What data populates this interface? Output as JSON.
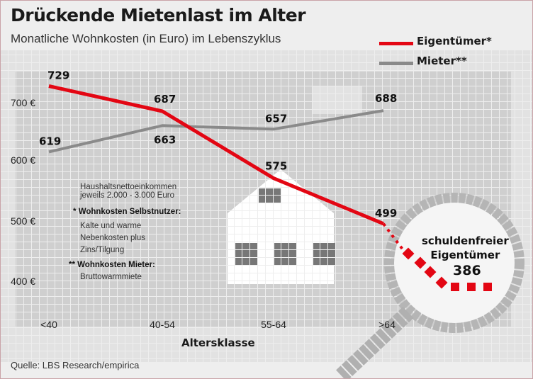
{
  "chart_data": {
    "type": "line",
    "title": "Drückende Mietenlast im Alter",
    "subtitle": "Monatliche Wohnkosten (in Euro) im Lebenszyklus",
    "xlabel": "Altersklasse",
    "ylabel": "",
    "categories": [
      "<40",
      "40-54",
      "55-64",
      ">64"
    ],
    "yticks": [
      "700 €",
      "600 €",
      "500 €",
      "400 €"
    ],
    "ylim": [
      350,
      760
    ],
    "series": [
      {
        "name": "Eigentümer*",
        "color": "#e30613",
        "values": [
          729,
          687,
          575,
          499
        ],
        "labels": [
          "729",
          "687",
          "575",
          "499"
        ]
      },
      {
        "name": "Mieter**",
        "color": "#8a8a8a",
        "values": [
          619,
          663,
          657,
          688
        ],
        "labels": [
          "619",
          "663",
          "657",
          "688"
        ]
      }
    ],
    "annotation": {
      "text_line1": "schuldenfreier",
      "text_line2": "Eigentümer",
      "value": 386,
      "label": "386"
    },
    "legend_position": "top-right",
    "grid": false
  },
  "notes": {
    "line1": "Haushaltsnettoeinkommen",
    "line2": "jeweils 2.000 - 3.000 Euro",
    "owner_marker": "*",
    "owner_heading": "Wohnkosten Selbstnutzer:",
    "owner_l1": "Kalte und warme",
    "owner_l2": "Nebenkosten plus",
    "owner_l3": "Zins/Tilgung",
    "renter_marker": "**",
    "renter_heading": "Wohnkosten Mieter:",
    "renter_l1": "Bruttowarmmiete"
  },
  "source": "Quelle: LBS Research/empirica"
}
